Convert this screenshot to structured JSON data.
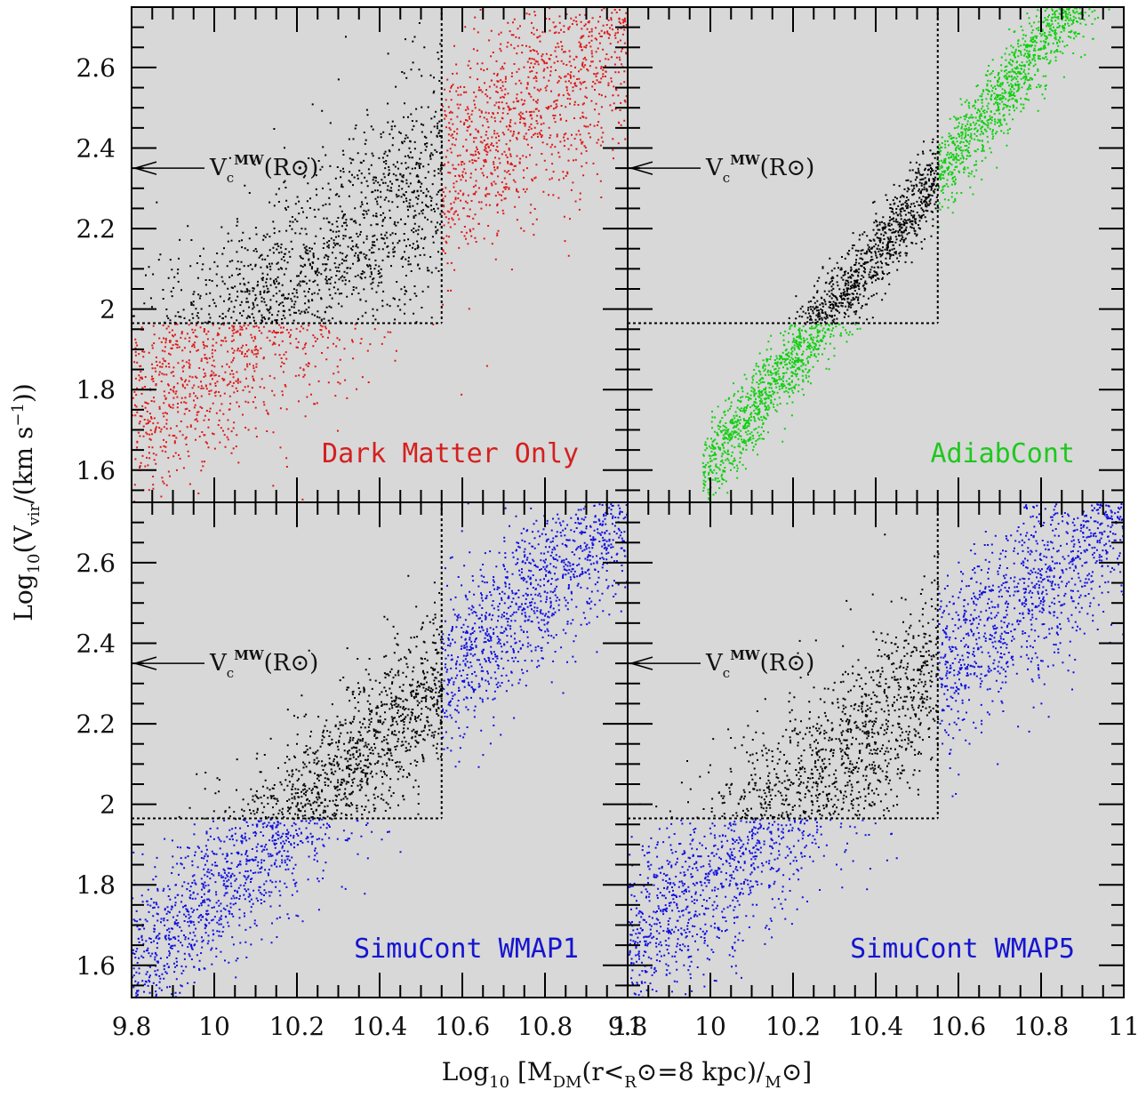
{
  "ylabel": "Log10(Vvir/(km s−1))",
  "xlabel": "Log10 [MDM(r<R⊙=8 kpc)/M⊙]",
  "annotation": "Vc MW(R⊙)",
  "chart_data": [
    {
      "type": "scatter",
      "title": "Dark Matter Only",
      "label_color": "#d42020",
      "point_color": "#dd1a1a",
      "selected_color": "#000000",
      "xlim": [
        9.8,
        11.0
      ],
      "ylim": [
        1.52,
        2.75
      ],
      "xticks": [
        9.8,
        10,
        10.2,
        10.4,
        10.6,
        10.8,
        11
      ],
      "yticks": [
        1.6,
        1.8,
        2,
        2.2,
        2.4,
        2.6
      ],
      "relation": {
        "y_at_x_min": 1.74,
        "slope": 0.8,
        "scatter": 0.14,
        "x_range": [
          9.8,
          11.0
        ]
      },
      "cut": {
        "x": 10.55,
        "y": 1.965
      },
      "vc_mw": 2.35
    },
    {
      "type": "scatter",
      "title": "AdiabCont",
      "label_color": "#1ec81e",
      "point_color": "#10d010",
      "selected_color": "#000000",
      "xlim": [
        9.8,
        11.0
      ],
      "ylim": [
        1.52,
        2.75
      ],
      "xticks": [
        9.8,
        10,
        10.2,
        10.4,
        10.6,
        10.8,
        11
      ],
      "yticks": [
        1.6,
        1.8,
        2,
        2.2,
        2.4,
        2.6
      ],
      "relation": {
        "y_at_x_min": 1.36,
        "slope": 1.3,
        "scatter": 0.05,
        "x_range": [
          9.98,
          11.0
        ]
      },
      "cut": {
        "x": 10.55,
        "y": 1.965
      },
      "vc_mw": 2.35
    },
    {
      "type": "scatter",
      "title": "SimuCont WMAP1",
      "label_color": "#1515d0",
      "point_color": "#1010e0",
      "selected_color": "#000000",
      "xlim": [
        9.8,
        11.0
      ],
      "ylim": [
        1.52,
        2.75
      ],
      "xticks": [
        9.8,
        10,
        10.2,
        10.4,
        10.6,
        10.8,
        11
      ],
      "yticks": [
        1.6,
        1.8,
        2,
        2.2,
        2.4,
        2.6
      ],
      "relation": {
        "y_at_x_min": 1.6,
        "slope": 0.95,
        "scatter": 0.1,
        "x_range": [
          9.8,
          11.0
        ]
      },
      "cut": {
        "x": 10.55,
        "y": 1.965
      },
      "vc_mw": 2.35
    },
    {
      "type": "scatter",
      "title": "SimuCont WMAP5",
      "label_color": "#1515d0",
      "point_color": "#1010e0",
      "selected_color": "#000000",
      "xlim": [
        9.8,
        11.0
      ],
      "ylim": [
        1.52,
        2.75
      ],
      "xticks": [
        9.8,
        10,
        10.2,
        10.4,
        10.6,
        10.8,
        11
      ],
      "yticks": [
        1.6,
        1.8,
        2,
        2.2,
        2.4,
        2.6
      ],
      "relation": {
        "y_at_x_min": 1.64,
        "slope": 0.92,
        "scatter": 0.12,
        "x_range": [
          9.8,
          11.0
        ]
      },
      "cut": {
        "x": 10.55,
        "y": 1.965
      },
      "vc_mw": 2.35
    }
  ]
}
